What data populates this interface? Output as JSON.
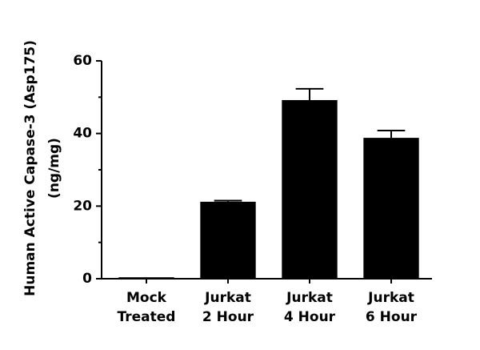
{
  "chart_data": {
    "type": "bar",
    "ylabel": [
      "Human Active Capase-3 (Asp175)",
      "(ng/mg)"
    ],
    "categories": [
      [
        "Mock",
        "Treated"
      ],
      [
        "Jurkat",
        "2 Hour"
      ],
      [
        "Jurkat",
        "4 Hour"
      ],
      [
        "Jurkat",
        "6 Hour"
      ]
    ],
    "values": [
      0.4,
      21.2,
      49.2,
      38.8
    ],
    "errors": [
      0,
      0.3,
      3.1,
      2.0
    ],
    "color": "#000000",
    "ylim": [
      0,
      60
    ],
    "yticks": [
      0,
      20,
      40,
      60
    ],
    "yminorticks": [
      10,
      30,
      50
    ],
    "grid": false
  }
}
